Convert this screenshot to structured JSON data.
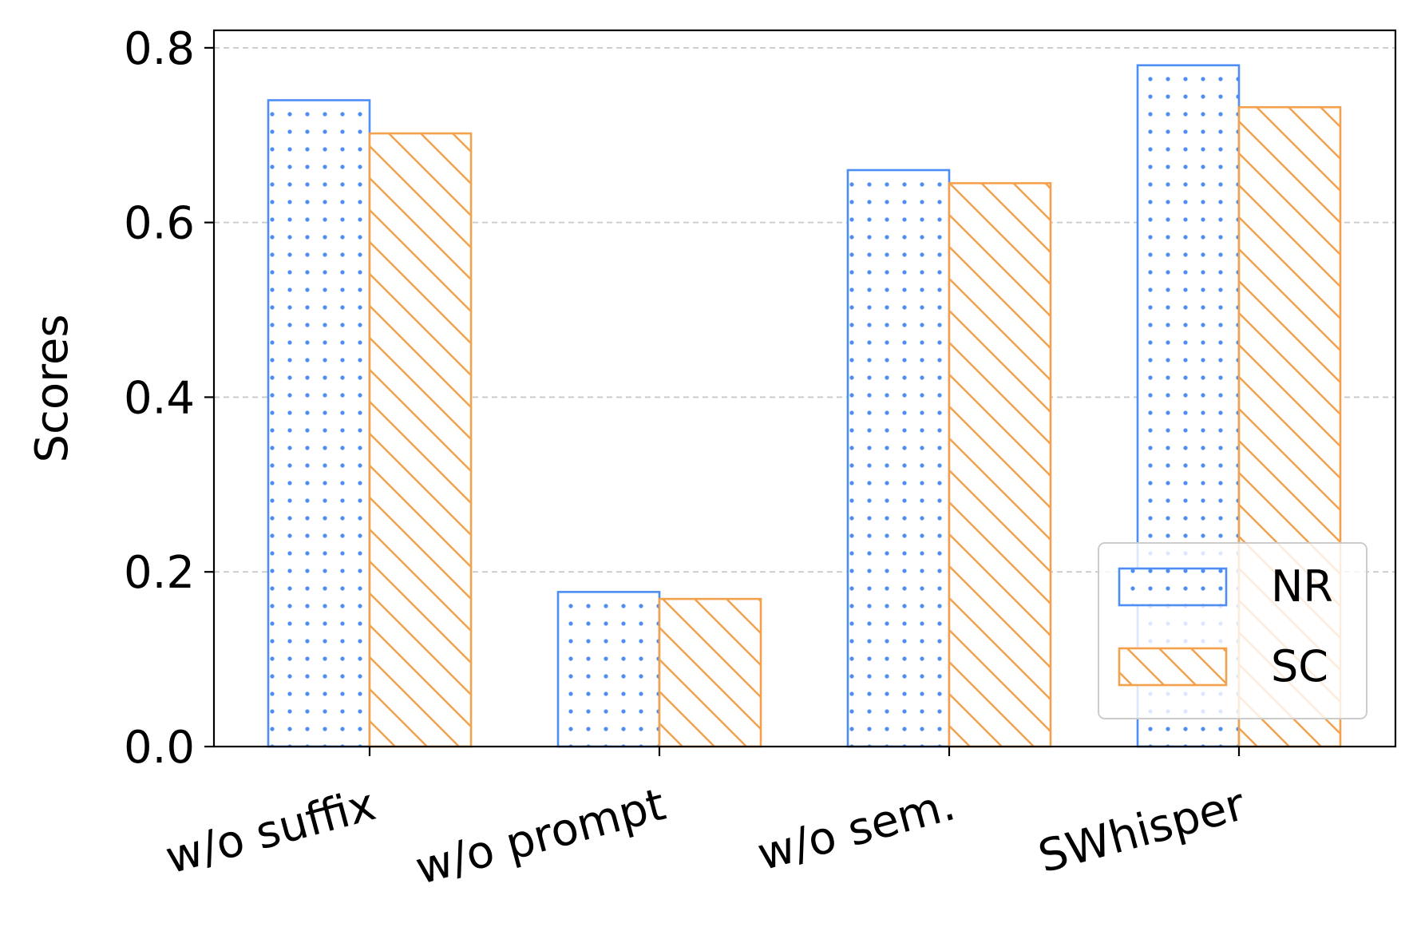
{
  "chart_data": {
    "type": "bar",
    "categories": [
      "w/o suffix",
      "w/o prompt",
      "w/o sem.",
      "SWhisper"
    ],
    "series": [
      {
        "name": "NR",
        "values": [
          0.74,
          0.177,
          0.66,
          0.78
        ],
        "color": "#4c8df6",
        "pattern": "dots"
      },
      {
        "name": "SC",
        "values": [
          0.702,
          0.169,
          0.645,
          0.732
        ],
        "color": "#f5a14c",
        "pattern": "hatch"
      }
    ],
    "xlabel": "",
    "ylabel": "Scores",
    "ylim": [
      0,
      0.82
    ],
    "yticks": [
      "0.0",
      "0.2",
      "0.4",
      "0.6",
      "0.8"
    ],
    "grid": "horizontal dashed",
    "legend_position": "bottom-right",
    "x_tick_rotation_deg": -15
  }
}
